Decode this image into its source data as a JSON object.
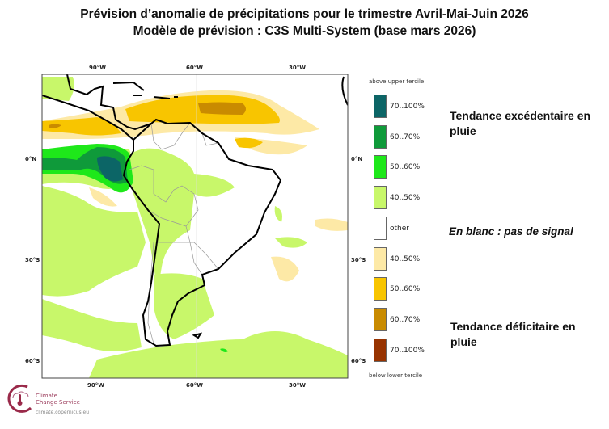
{
  "title": {
    "line1": "Prévision d’anomalie de précipitations pour le trimestre Avril-Mai-Juin 2026",
    "line2": "Modèle de prévision : C3S Multi-System (base mars 2026)"
  },
  "map": {
    "lon_ticks": [
      "90°W",
      "60°W",
      "30°W"
    ],
    "lat_ticks": [
      "0°N",
      "30°S",
      "60°S"
    ],
    "colors": {
      "coast": "#000000",
      "borders": "#999999"
    }
  },
  "legend": {
    "top_label": "above upper tercile",
    "bottom_label": "below lower tercile",
    "items": [
      {
        "label": "70..100%",
        "color": "#0c6566"
      },
      {
        "label": "60..70%",
        "color": "#0f9a3a"
      },
      {
        "label": "50..60%",
        "color": "#1ee81a"
      },
      {
        "label": "40..50%",
        "color": "#c8f76a"
      },
      {
        "label": "other",
        "color": "#ffffff"
      },
      {
        "label": "40..50%",
        "color": "#fde9a6"
      },
      {
        "label": "50..60%",
        "color": "#f8c500"
      },
      {
        "label": "60..70%",
        "color": "#c98b00"
      },
      {
        "label": "70..100%",
        "color": "#973300"
      }
    ]
  },
  "notes": {
    "wet": "Tendance excédentaire en pluie",
    "white": "En blanc : pas de signal",
    "dry": "Tendance déficitaire en pluie"
  },
  "logo": {
    "name1": "Climate",
    "name2": "Change Service",
    "url": "climate.copernicus.eu"
  }
}
